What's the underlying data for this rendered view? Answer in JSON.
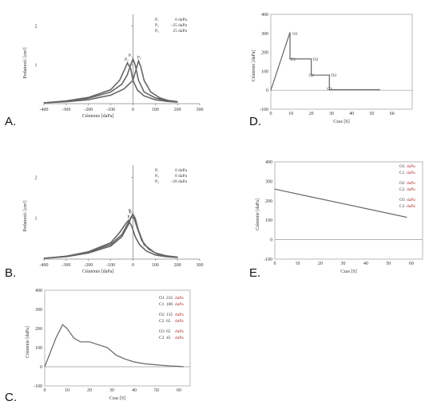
{
  "panels": [
    {
      "letter": "A.",
      "chart_data": {
        "type": "line",
        "xlabel": "Ciśnienie [daPa]",
        "ylabel": "Podatność [cm³]",
        "xlim": [
          -400,
          300
        ],
        "ylim": [
          0,
          2.3
        ],
        "xticks": [
          -400,
          -300,
          -200,
          -100,
          0,
          100,
          200,
          300
        ],
        "yticks": [
          1,
          2
        ],
        "legend": [
          {
            "name": "P₁",
            "value": "0 daPa"
          },
          {
            "name": "P₂",
            "value": "−25 daPa"
          },
          {
            "name": "P₃",
            "value": "25 daPa"
          }
        ],
        "series": [
          {
            "name": "P₁",
            "peak_label": "P₁",
            "x": [
              -400,
              -300,
              -200,
              -100,
              -50,
              -25,
              -10,
              0,
              10,
              25,
              50,
              100,
              150,
              200
            ],
            "y": [
              0.02,
              0.06,
              0.14,
              0.3,
              0.5,
              0.75,
              1.0,
              1.15,
              1.0,
              0.6,
              0.3,
              0.15,
              0.08,
              0.05
            ]
          },
          {
            "name": "P₂",
            "peak_label": "P₂",
            "x": [
              -400,
              -300,
              -200,
              -100,
              -60,
              -40,
              -25,
              -10,
              0,
              20,
              50,
              100,
              150,
              200
            ],
            "y": [
              0.02,
              0.07,
              0.16,
              0.36,
              0.6,
              0.85,
              1.05,
              0.9,
              0.6,
              0.35,
              0.2,
              0.1,
              0.06,
              0.04
            ]
          },
          {
            "name": "P₃",
            "peak_label": "P₃",
            "x": [
              -400,
              -300,
              -200,
              -100,
              -40,
              0,
              15,
              25,
              35,
              50,
              80,
              120,
              160,
              200
            ],
            "y": [
              0.02,
              0.05,
              0.1,
              0.22,
              0.38,
              0.6,
              0.9,
              1.1,
              0.95,
              0.6,
              0.3,
              0.15,
              0.08,
              0.05
            ]
          }
        ]
      }
    },
    {
      "letter": "B.",
      "chart_data": {
        "type": "line",
        "xlabel": "Ciśnienie [daPa]",
        "ylabel": "Podatność [cm³]",
        "xlim": [
          -400,
          300
        ],
        "ylim": [
          0,
          2.3
        ],
        "xticks": [
          -400,
          -300,
          -200,
          -100,
          0,
          100,
          200,
          300
        ],
        "yticks": [
          1,
          2
        ],
        "legend": [
          {
            "name": "P₁",
            "value": "0 daPa"
          },
          {
            "name": "P₂",
            "value": "0 daPa"
          },
          {
            "name": "P₃",
            "value": "−20 daPa"
          }
        ],
        "series": [
          {
            "name": "P₁",
            "peak_label": "P₁",
            "x": [
              -400,
              -300,
              -200,
              -100,
              -50,
              -20,
              -10,
              0,
              10,
              25,
              50,
              100,
              150,
              200
            ],
            "y": [
              0.02,
              0.06,
              0.15,
              0.32,
              0.55,
              0.85,
              1.0,
              1.1,
              1.0,
              0.7,
              0.35,
              0.15,
              0.08,
              0.05
            ]
          },
          {
            "name": "P₂",
            "peak_label": "P₂",
            "x": [
              -400,
              -300,
              -200,
              -100,
              -50,
              -20,
              -5,
              5,
              20,
              40,
              70,
              110,
              160,
              200
            ],
            "y": [
              0.02,
              0.07,
              0.17,
              0.36,
              0.6,
              0.9,
              1.05,
              1.0,
              0.75,
              0.45,
              0.25,
              0.12,
              0.07,
              0.04
            ]
          },
          {
            "name": "P₃",
            "peak_label": "P₃",
            "x": [
              -400,
              -300,
              -200,
              -100,
              -60,
              -35,
              -20,
              -5,
              10,
              30,
              60,
              100,
              150,
              200
            ],
            "y": [
              0.02,
              0.07,
              0.18,
              0.4,
              0.65,
              0.85,
              0.95,
              0.8,
              0.55,
              0.35,
              0.2,
              0.1,
              0.06,
              0.04
            ]
          }
        ]
      }
    },
    {
      "letter": "C.",
      "chart_data": {
        "type": "line",
        "xlabel": "Czas [S]",
        "ylabel": "Ciśnienie [daPa]",
        "xlim": [
          0,
          65
        ],
        "ylim": [
          -100,
          400
        ],
        "xticks": [
          0,
          10,
          20,
          30,
          40,
          50,
          60
        ],
        "yticks": [
          -100,
          0,
          100,
          200,
          300,
          400
        ],
        "legend": [
          {
            "name": "O1",
            "value": "235"
          },
          {
            "name": "C1",
            "value": "180"
          },
          {
            "name": "O2",
            "value": "135"
          },
          {
            "name": "C2",
            "value": "65"
          },
          {
            "name": "O3",
            "value": "65"
          },
          {
            "name": "C3",
            "value": "45"
          }
        ],
        "series": [
          {
            "name": "",
            "x": [
              0,
              2,
              5,
              8,
              10,
              13,
              16,
              20,
              24,
              28,
              32,
              36,
              40,
              45,
              50,
              55,
              60,
              62
            ],
            "y": [
              0,
              60,
              150,
              220,
              200,
              150,
              130,
              130,
              115,
              100,
              60,
              40,
              25,
              15,
              10,
              5,
              2,
              0
            ]
          }
        ]
      }
    },
    {
      "letter": "D.",
      "chart_data": {
        "type": "line",
        "xlabel": "Czas [S]",
        "ylabel": "Ciśnienie [daPa]",
        "xlim": [
          0,
          70
        ],
        "ylim": [
          -100,
          400
        ],
        "xticks": [
          0,
          10,
          20,
          30,
          40,
          50,
          60
        ],
        "yticks": [
          -100,
          0,
          100,
          200,
          300,
          400
        ],
        "annotations": [
          {
            "text": "O1",
            "x": 10,
            "y": 300
          },
          {
            "text": "C1",
            "x": 9,
            "y": 165
          },
          {
            "text": "O2",
            "x": 20,
            "y": 165
          },
          {
            "text": "C2",
            "x": 18,
            "y": 80
          },
          {
            "text": "O3",
            "x": 29,
            "y": 80
          },
          {
            "text": "C3",
            "x": 27,
            "y": 10
          }
        ],
        "series": [
          {
            "name": "",
            "x": [
              0,
              9.5,
              9.5,
              20,
              20,
              29,
              29,
              54
            ],
            "y": [
              0,
              305,
              165,
              165,
              80,
              80,
              3,
              3
            ]
          }
        ]
      }
    },
    {
      "letter": "E.",
      "chart_data": {
        "type": "line",
        "xlabel": "Czas [S]",
        "ylabel": "Ciśnienie [daPa]",
        "xlim": [
          0,
          65
        ],
        "ylim": [
          -100,
          400
        ],
        "xticks": [
          0,
          10,
          20,
          30,
          40,
          50,
          60
        ],
        "yticks": [
          -100,
          0,
          100,
          200,
          300,
          400
        ],
        "legend": [
          {
            "name": "O1",
            "value": ""
          },
          {
            "name": "C1",
            "value": ""
          },
          {
            "name": "O2",
            "value": ""
          },
          {
            "name": "C2",
            "value": ""
          },
          {
            "name": "O3",
            "value": ""
          },
          {
            "name": "C3",
            "value": ""
          }
        ],
        "series": [
          {
            "name": "",
            "x": [
              0,
              58
            ],
            "y": [
              260,
              115
            ]
          }
        ]
      }
    }
  ]
}
